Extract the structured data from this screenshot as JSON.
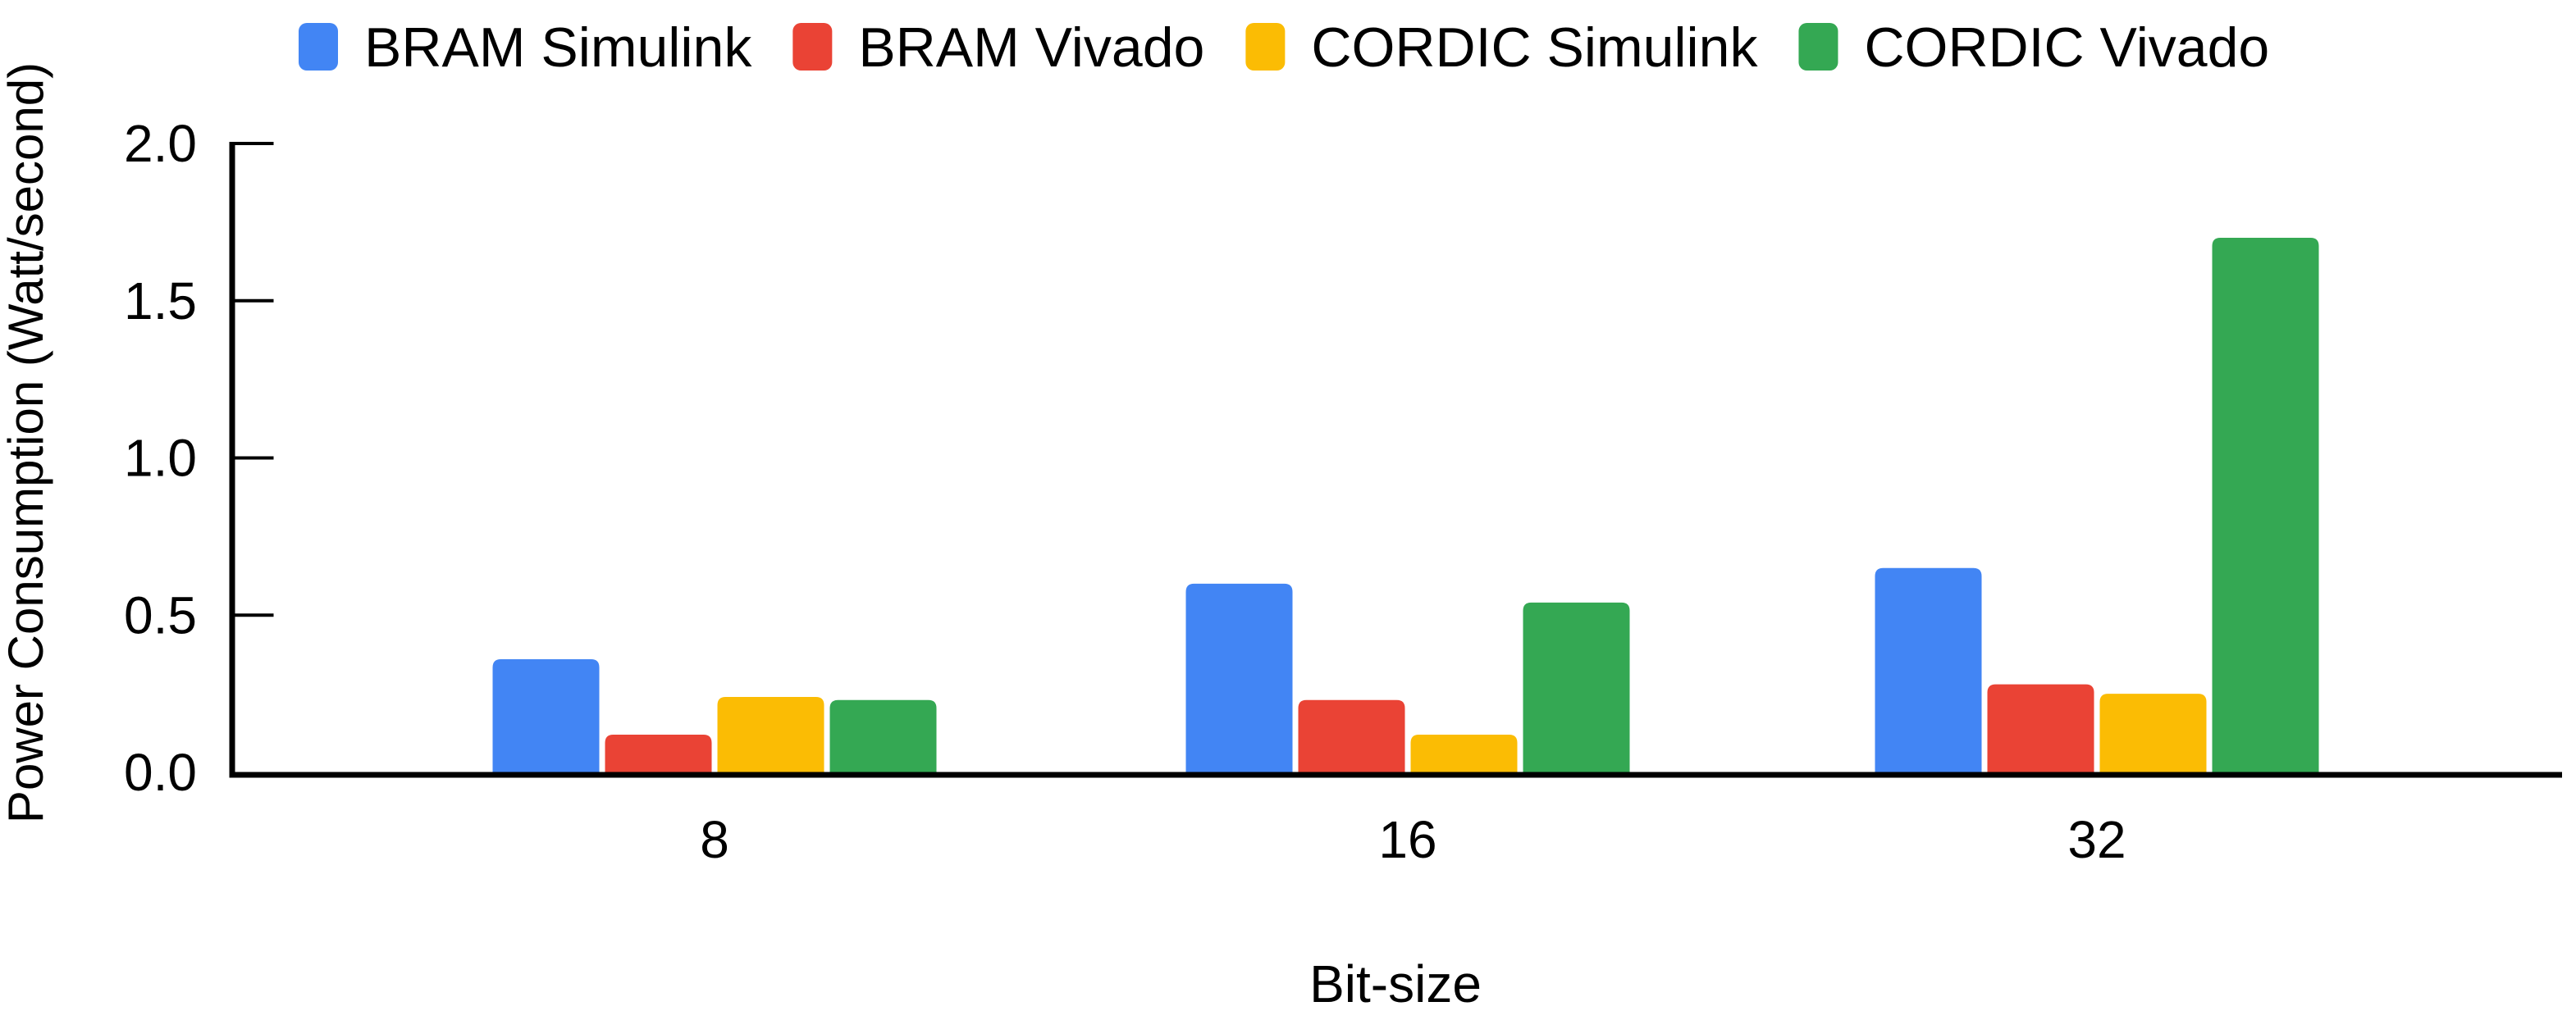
{
  "chart_data": {
    "type": "bar",
    "title": "",
    "xlabel": "Bit-size",
    "ylabel": "Power Consumption (Watt/second)",
    "categories": [
      "8",
      "16",
      "32"
    ],
    "series": [
      {
        "name": "BRAM Simulink",
        "color": "#4285F4",
        "values": [
          0.36,
          0.6,
          0.65
        ]
      },
      {
        "name": "BRAM Vivado",
        "color": "#EA4335",
        "values": [
          0.12,
          0.23,
          0.28
        ]
      },
      {
        "name": "CORDIC Simulink",
        "color": "#FBBC04",
        "values": [
          0.24,
          0.12,
          0.25
        ]
      },
      {
        "name": "CORDIC Vivado",
        "color": "#34A853",
        "values": [
          0.23,
          0.54,
          1.7
        ]
      }
    ],
    "ylim": [
      0,
      2.0
    ],
    "yticks": [
      0.0,
      0.5,
      1.0,
      1.5,
      2.0
    ],
    "ytick_labels": [
      "0.0",
      "0.5",
      "1.0",
      "1.5",
      "2.0"
    ],
    "legend_position": "top",
    "grid": false,
    "axis_color": "#000000",
    "background_color": "#ffffff"
  }
}
